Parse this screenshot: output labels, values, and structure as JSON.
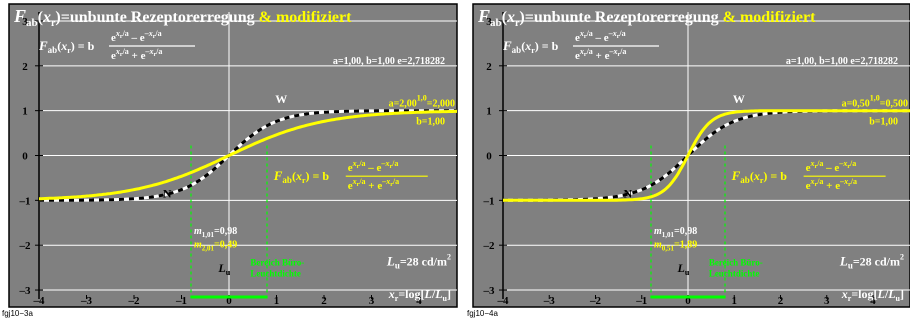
{
  "chart_data": [
    {
      "type": "line",
      "title_main": "=unbunte Rezeptorerregung",
      "title_mod": "& modifiziert",
      "params": "a=1,00, b=1,00 e=2,718282",
      "a_label": "a=2,00",
      "a_exp": "1,0",
      "a_val": "=2,000",
      "b_label": "b=1,00",
      "m1": "m",
      "m1_sub": "1,01",
      "m1_val": "=0,98",
      "m2_sub": "2,01",
      "m2_val": "=0,49",
      "bereich1": "Bereich Büro-",
      "bereich2": "Leuchtdichte",
      "label_W": "W",
      "label_N": "N",
      "lum": "L",
      "lum_sub": "u",
      "lum_val": "=28 cd/m",
      "lum_exp": "2",
      "xaxis": "x",
      "xaxis_sub": "r",
      "xaxis_text": "=log[",
      "xaxis_L": "L",
      "xaxis_Lu": "L",
      "xaxis_end": "]",
      "xticks": [
        "–4",
        "–3",
        "–2",
        "–1",
        "0",
        "1",
        "2",
        "3",
        "4"
      ],
      "yticks": [
        "3",
        "2",
        "1",
        "0",
        "–1",
        "–2",
        "–3"
      ],
      "xlim": [
        -4,
        4.8
      ],
      "ylim": [
        -3.2,
        3.2
      ],
      "a": 2.0,
      "b": 1.0,
      "bereich_range": [
        -0.8,
        0.8
      ],
      "caption": "fgj10−3a"
    },
    {
      "type": "line",
      "title_main": "=unbunte Rezeptorerregung",
      "title_mod": "& modifiziert",
      "params": "a=1,00, b=1,00 e=2,718282",
      "a_label": "a=0,50",
      "a_exp": "1,0",
      "a_val": "=0,500",
      "b_label": "b=1,00",
      "m1": "m",
      "m1_sub": "1,01",
      "m1_val": "=0,98",
      "m2_sub": "0,51",
      "m2_val": "=1,89",
      "bereich1": "Bereich Büro-",
      "bereich2": "Leuchtdichte",
      "label_W": "W",
      "label_N": "N",
      "lum": "L",
      "lum_sub": "u",
      "lum_val": "=28 cd/m",
      "lum_exp": "2",
      "xaxis": "x",
      "xaxis_sub": "r",
      "xaxis_text": "=log[",
      "xaxis_L": "L",
      "xaxis_Lu": "L",
      "xaxis_end": "]",
      "xticks": [
        "–4",
        "–3",
        "–2",
        "–1",
        "0",
        "1",
        "2",
        "3",
        "4"
      ],
      "yticks": [
        "3",
        "2",
        "1",
        "0",
        "–1",
        "–2",
        "–3"
      ],
      "xlim": [
        -4,
        4.8
      ],
      "ylim": [
        -3.2,
        3.2
      ],
      "a": 0.5,
      "b": 1.0,
      "bereich_range": [
        -0.8,
        0.8
      ],
      "caption": "fgj10−4a"
    }
  ],
  "colors": {
    "background": "#808080",
    "frame": "#000000",
    "grid": "#ffffff",
    "yellow": "#ffff00",
    "green": "#00ff00",
    "black": "#000000"
  }
}
